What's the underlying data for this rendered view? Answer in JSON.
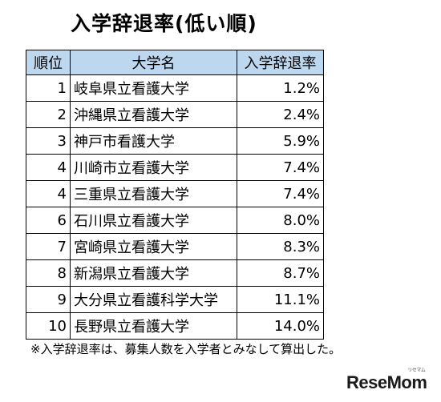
{
  "title": "入学辞退率(低い順)",
  "table": {
    "headers": [
      "順位",
      "大学名",
      "入学辞退率"
    ],
    "rows": [
      {
        "rank": "1",
        "name": "岐阜県立看護大学",
        "rate": "1.2%"
      },
      {
        "rank": "2",
        "name": "沖縄県立看護大学",
        "rate": "2.4%"
      },
      {
        "rank": "3",
        "name": "神戸市看護大学",
        "rate": "5.9%"
      },
      {
        "rank": "4",
        "name": "川崎市立看護大学",
        "rate": "7.4%"
      },
      {
        "rank": "4",
        "name": "三重県立看護大学",
        "rate": "7.4%"
      },
      {
        "rank": "6",
        "name": "石川県立看護大学",
        "rate": "8.0%"
      },
      {
        "rank": "7",
        "name": "宮崎県立看護大学",
        "rate": "8.3%"
      },
      {
        "rank": "8",
        "name": "新潟県立看護大学",
        "rate": "8.7%"
      },
      {
        "rank": "9",
        "name": "大分県立看護科学大学",
        "rate": "11.1%"
      },
      {
        "rank": "10",
        "name": "長野県立看護大学",
        "rate": "14.0%"
      }
    ]
  },
  "footnote": "※入学辞退率は、募集人数を入学者とみなして算出した。",
  "logo": {
    "text": "ReseMom",
    "sub": "リセマム"
  },
  "colors": {
    "header_bg": "#bdd7ee"
  }
}
